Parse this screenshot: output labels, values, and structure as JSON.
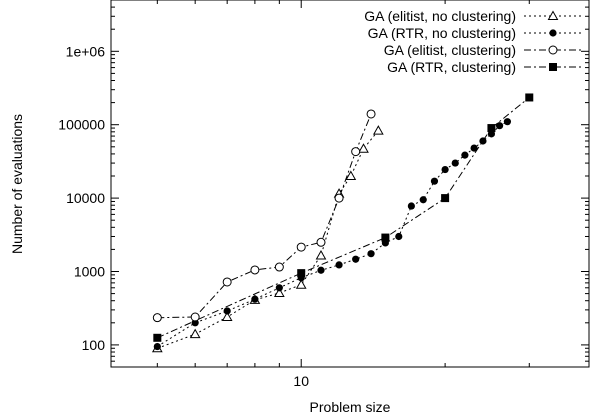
{
  "chart_data": {
    "type": "scatter",
    "xlabel": "Problem size",
    "ylabel": "Number of evaluations",
    "x_scale": "log",
    "y_scale": "log",
    "xlim": [
      4,
      40
    ],
    "ylim": [
      50,
      5000000
    ],
    "x_ticks": [
      {
        "value": 10,
        "label": "10"
      }
    ],
    "y_ticks": [
      {
        "value": 100,
        "label": "100"
      },
      {
        "value": 1000,
        "label": "1000"
      },
      {
        "value": 10000,
        "label": "10000"
      },
      {
        "value": 100000,
        "label": "100000"
      },
      {
        "value": 1000000,
        "label": "1e+06"
      }
    ],
    "grid": false,
    "legend_position": "top-right",
    "series": [
      {
        "name": "GA (elitist, no clustering)",
        "marker": "triangle-open",
        "line": "dotted",
        "points": [
          [
            5,
            90
          ],
          [
            6,
            140
          ],
          [
            7,
            240
          ],
          [
            8,
            410
          ],
          [
            9,
            510
          ],
          [
            10,
            660
          ],
          [
            11,
            1650
          ],
          [
            12,
            11500
          ],
          [
            12.7,
            20000
          ],
          [
            13.5,
            47000
          ],
          [
            14.5,
            83000
          ]
        ]
      },
      {
        "name": "GA (RTR, no clustering)",
        "marker": "circle-filled",
        "line": "dotted",
        "points": [
          [
            5,
            95
          ],
          [
            6,
            200
          ],
          [
            7,
            290
          ],
          [
            8,
            420
          ],
          [
            9,
            600
          ],
          [
            10,
            820
          ],
          [
            11,
            1040
          ],
          [
            12,
            1230
          ],
          [
            13,
            1470
          ],
          [
            14,
            1750
          ],
          [
            15,
            2450
          ],
          [
            16,
            3000
          ],
          [
            17,
            7800
          ],
          [
            18,
            9500
          ],
          [
            19,
            17000
          ],
          [
            20,
            24500
          ],
          [
            21,
            30000
          ],
          [
            22,
            38500
          ],
          [
            23,
            48000
          ],
          [
            24,
            60000
          ],
          [
            25,
            75000
          ],
          [
            26,
            97000
          ],
          [
            27,
            110000
          ]
        ]
      },
      {
        "name": "GA (elitist, clustering)",
        "marker": "circle-open",
        "line": "dash-dot",
        "points": [
          [
            5,
            235
          ],
          [
            6,
            240
          ],
          [
            7,
            720
          ],
          [
            8,
            1050
          ],
          [
            9,
            1150
          ],
          [
            10,
            2150
          ],
          [
            11,
            2500
          ],
          [
            12,
            10000
          ],
          [
            13,
            43000
          ],
          [
            14,
            140000
          ]
        ]
      },
      {
        "name": "GA (RTR, clustering)",
        "marker": "square-filled",
        "line": "dash-dot",
        "points": [
          [
            5,
            125
          ],
          [
            10,
            950
          ],
          [
            15,
            2900
          ],
          [
            20,
            10000
          ],
          [
            25,
            90000
          ],
          [
            30,
            235000
          ]
        ]
      }
    ]
  }
}
